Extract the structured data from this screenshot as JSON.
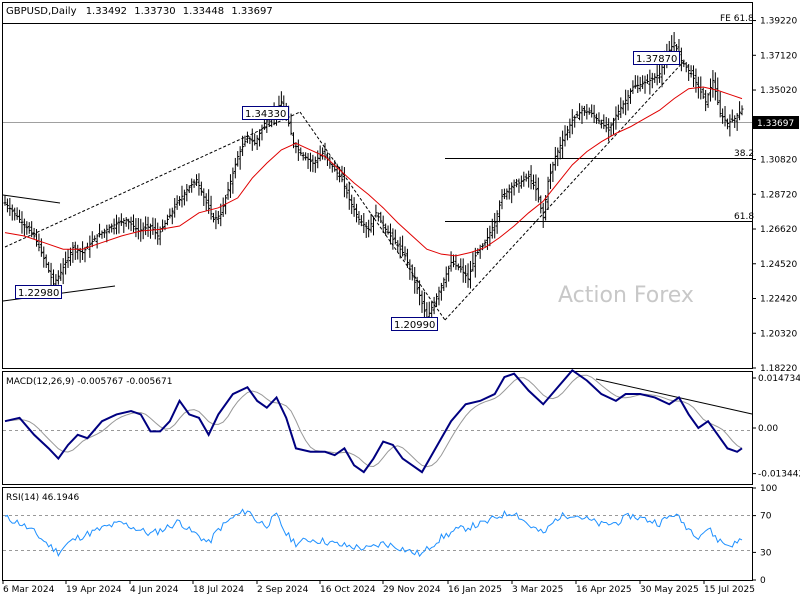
{
  "chart_data": [
    {
      "type": "candlestick",
      "panel": "price",
      "title": "GBPUSD,Daily",
      "ohlc": {
        "open": "1.33492",
        "high": "1.33730",
        "low": "1.33448",
        "close": "1.33697"
      },
      "ylim": [
        1.1822,
        1.4028
      ],
      "y_ticks": [
        "1.39220",
        "1.37120",
        "1.35020",
        "1.32920",
        "1.30820",
        "1.28720",
        "1.26620",
        "1.24520",
        "1.22420",
        "1.20320",
        "1.18220"
      ],
      "current_price": "1.33697",
      "x_ticks": [
        "6 Mar 2024",
        "19 Apr 2024",
        "4 Jun 2024",
        "18 Jul 2024",
        "2 Sep 2024",
        "16 Oct 2024",
        "29 Nov 2024",
        "16 Jan 2025",
        "3 Mar 2025",
        "16 Apr 2025",
        "30 May 2025",
        "15 Jul 2025"
      ],
      "ma_line_color": "#e00000",
      "bar_color": "#000000",
      "annotations": {
        "labels": [
          "1.34330",
          "1.22980",
          "1.20990",
          "1.37870"
        ],
        "fe": "FE 61.8",
        "fib382": "38.2",
        "fib618": "61.8",
        "watermark": "Action Forex"
      },
      "price_path": [
        [
          0,
          1.282
        ],
        [
          6,
          1.272
        ],
        [
          12,
          1.262
        ],
        [
          17,
          1.245
        ],
        [
          20,
          1.233
        ],
        [
          23,
          1.24
        ],
        [
          28,
          1.255
        ],
        [
          32,
          1.252
        ],
        [
          38,
          1.262
        ],
        [
          44,
          1.268
        ],
        [
          50,
          1.272
        ],
        [
          55,
          1.265
        ],
        [
          60,
          1.268
        ],
        [
          63,
          1.262
        ],
        [
          67,
          1.272
        ],
        [
          71,
          1.282
        ],
        [
          75,
          1.29
        ],
        [
          79,
          1.296
        ],
        [
          83,
          1.282
        ],
        [
          86,
          1.272
        ],
        [
          89,
          1.275
        ],
        [
          92,
          1.29
        ],
        [
          96,
          1.31
        ],
        [
          100,
          1.322
        ],
        [
          103,
          1.318
        ],
        [
          107,
          1.33
        ],
        [
          111,
          1.336
        ],
        [
          114,
          1.343
        ],
        [
          117,
          1.33
        ],
        [
          119,
          1.318
        ],
        [
          122,
          1.312
        ],
        [
          127,
          1.306
        ],
        [
          131,
          1.312
        ],
        [
          135,
          1.304
        ],
        [
          139,
          1.296
        ],
        [
          142,
          1.284
        ],
        [
          146,
          1.272
        ],
        [
          150,
          1.266
        ],
        [
          153,
          1.276
        ],
        [
          157,
          1.266
        ],
        [
          161,
          1.258
        ],
        [
          165,
          1.25
        ],
        [
          168,
          1.238
        ],
        [
          171,
          1.226
        ],
        [
          174,
          1.212
        ],
        [
          177,
          1.222
        ],
        [
          180,
          1.232
        ],
        [
          184,
          1.246
        ],
        [
          188,
          1.242
        ],
        [
          191,
          1.236
        ],
        [
          194,
          1.25
        ],
        [
          198,
          1.258
        ],
        [
          202,
          1.27
        ],
        [
          205,
          1.286
        ],
        [
          209,
          1.292
        ],
        [
          212,
          1.294
        ],
        [
          216,
          1.298
        ],
        [
          219,
          1.29
        ],
        [
          222,
          1.273
        ],
        [
          224,
          1.295
        ],
        [
          227,
          1.31
        ],
        [
          230,
          1.32
        ],
        [
          234,
          1.332
        ],
        [
          238,
          1.338
        ],
        [
          242,
          1.336
        ],
        [
          246,
          1.33
        ],
        [
          249,
          1.326
        ],
        [
          252,
          1.335
        ],
        [
          256,
          1.344
        ],
        [
          259,
          1.352
        ],
        [
          263,
          1.354
        ],
        [
          266,
          1.356
        ],
        [
          270,
          1.36
        ],
        [
          273,
          1.372
        ],
        [
          276,
          1.3787
        ],
        [
          279,
          1.368
        ],
        [
          283,
          1.36
        ],
        [
          286,
          1.352
        ],
        [
          289,
          1.343
        ],
        [
          292,
          1.356
        ],
        [
          295,
          1.336
        ],
        [
          298,
          1.33
        ],
        [
          301,
          1.333
        ],
        [
          304,
          1.3387
        ]
      ],
      "ma_path": [
        [
          0,
          1.264
        ],
        [
          8,
          1.262
        ],
        [
          16,
          1.258
        ],
        [
          24,
          1.254
        ],
        [
          32,
          1.254
        ],
        [
          40,
          1.258
        ],
        [
          48,
          1.262
        ],
        [
          56,
          1.265
        ],
        [
          64,
          1.266
        ],
        [
          72,
          1.268
        ],
        [
          80,
          1.276
        ],
        [
          88,
          1.279
        ],
        [
          96,
          1.285
        ],
        [
          102,
          1.297
        ],
        [
          108,
          1.306
        ],
        [
          114,
          1.314
        ],
        [
          120,
          1.318
        ],
        [
          126,
          1.314
        ],
        [
          132,
          1.31
        ],
        [
          138,
          1.302
        ],
        [
          144,
          1.294
        ],
        [
          150,
          1.287
        ],
        [
          156,
          1.279
        ],
        [
          162,
          1.27
        ],
        [
          168,
          1.262
        ],
        [
          174,
          1.254
        ],
        [
          180,
          1.251
        ],
        [
          186,
          1.25
        ],
        [
          192,
          1.252
        ],
        [
          198,
          1.255
        ],
        [
          204,
          1.261
        ],
        [
          210,
          1.268
        ],
        [
          216,
          1.276
        ],
        [
          222,
          1.283
        ],
        [
          228,
          1.294
        ],
        [
          234,
          1.305
        ],
        [
          240,
          1.313
        ],
        [
          246,
          1.319
        ],
        [
          252,
          1.324
        ],
        [
          258,
          1.328
        ],
        [
          264,
          1.333
        ],
        [
          270,
          1.338
        ],
        [
          276,
          1.345
        ],
        [
          282,
          1.351
        ],
        [
          288,
          1.352
        ],
        [
          294,
          1.35
        ],
        [
          300,
          1.347
        ],
        [
          304,
          1.345
        ]
      ]
    },
    {
      "type": "line",
      "panel": "macd",
      "title": "MACD(12,26,9) -0.005767 -0.005671",
      "ylim": [
        -0.0165,
        0.0165
      ],
      "y_ticks": [
        "0.014734",
        "0.00",
        "-0.013442"
      ],
      "macd_color": "#000080",
      "signal_color": "#999999",
      "macd_path": [
        [
          0,
          0.002
        ],
        [
          6,
          0.003
        ],
        [
          12,
          -0.002
        ],
        [
          18,
          -0.006
        ],
        [
          22,
          -0.009
        ],
        [
          26,
          -0.005
        ],
        [
          30,
          -0.002
        ],
        [
          34,
          -0.003
        ],
        [
          40,
          0.002
        ],
        [
          46,
          0.004
        ],
        [
          52,
          0.005
        ],
        [
          56,
          0.004
        ],
        [
          60,
          -0.001
        ],
        [
          64,
          -0.001
        ],
        [
          68,
          0.002
        ],
        [
          72,
          0.008
        ],
        [
          76,
          0.004
        ],
        [
          80,
          0.003
        ],
        [
          84,
          -0.002
        ],
        [
          88,
          0.004
        ],
        [
          94,
          0.01
        ],
        [
          100,
          0.012
        ],
        [
          104,
          0.008
        ],
        [
          108,
          0.006
        ],
        [
          112,
          0.009
        ],
        [
          116,
          0.003
        ],
        [
          120,
          -0.006
        ],
        [
          126,
          -0.007
        ],
        [
          132,
          -0.007
        ],
        [
          136,
          -0.008
        ],
        [
          140,
          -0.006
        ],
        [
          144,
          -0.011
        ],
        [
          148,
          -0.013
        ],
        [
          152,
          -0.009
        ],
        [
          156,
          -0.004
        ],
        [
          160,
          -0.005
        ],
        [
          164,
          -0.009
        ],
        [
          168,
          -0.011
        ],
        [
          172,
          -0.013
        ],
        [
          176,
          -0.008
        ],
        [
          180,
          -0.003
        ],
        [
          184,
          0.002
        ],
        [
          190,
          0.007
        ],
        [
          196,
          0.008
        ],
        [
          202,
          0.01
        ],
        [
          206,
          0.015
        ],
        [
          210,
          0.016
        ],
        [
          216,
          0.011
        ],
        [
          222,
          0.007
        ],
        [
          228,
          0.012
        ],
        [
          234,
          0.017
        ],
        [
          240,
          0.014
        ],
        [
          246,
          0.01
        ],
        [
          252,
          0.008
        ],
        [
          256,
          0.01
        ],
        [
          262,
          0.01
        ],
        [
          268,
          0.009
        ],
        [
          274,
          0.007
        ],
        [
          278,
          0.009
        ],
        [
          282,
          0.004
        ],
        [
          286,
          0.0
        ],
        [
          290,
          0.002
        ],
        [
          294,
          -0.002
        ],
        [
          298,
          -0.006
        ],
        [
          302,
          -0.007
        ],
        [
          304,
          -0.006
        ]
      ]
    },
    {
      "type": "line",
      "panel": "rsi",
      "title": "RSI(14) 46.1946",
      "ylim": [
        0,
        100
      ],
      "y_ticks": [
        "100",
        "70",
        "30",
        "0"
      ],
      "line_color": "#1e90ff",
      "rsi_path": [
        [
          0,
          68
        ],
        [
          6,
          62
        ],
        [
          12,
          52
        ],
        [
          18,
          38
        ],
        [
          22,
          30
        ],
        [
          26,
          40
        ],
        [
          30,
          46
        ],
        [
          36,
          52
        ],
        [
          42,
          58
        ],
        [
          48,
          62
        ],
        [
          54,
          56
        ],
        [
          60,
          50
        ],
        [
          66,
          56
        ],
        [
          72,
          64
        ],
        [
          76,
          54
        ],
        [
          80,
          48
        ],
        [
          84,
          40
        ],
        [
          88,
          55
        ],
        [
          94,
          68
        ],
        [
          100,
          76
        ],
        [
          104,
          64
        ],
        [
          108,
          60
        ],
        [
          112,
          70
        ],
        [
          116,
          50
        ],
        [
          120,
          40
        ],
        [
          126,
          44
        ],
        [
          132,
          42
        ],
        [
          138,
          38
        ],
        [
          144,
          36
        ],
        [
          150,
          34
        ],
        [
          156,
          40
        ],
        [
          162,
          36
        ],
        [
          168,
          30
        ],
        [
          172,
          28
        ],
        [
          176,
          38
        ],
        [
          180,
          46
        ],
        [
          186,
          54
        ],
        [
          192,
          58
        ],
        [
          198,
          62
        ],
        [
          204,
          70
        ],
        [
          210,
          74
        ],
        [
          216,
          60
        ],
        [
          222,
          50
        ],
        [
          228,
          68
        ],
        [
          234,
          72
        ],
        [
          240,
          66
        ],
        [
          246,
          60
        ],
        [
          252,
          62
        ],
        [
          258,
          70
        ],
        [
          264,
          66
        ],
        [
          270,
          62
        ],
        [
          276,
          72
        ],
        [
          282,
          56
        ],
        [
          286,
          48
        ],
        [
          290,
          56
        ],
        [
          294,
          44
        ],
        [
          298,
          38
        ],
        [
          302,
          40
        ],
        [
          304,
          46
        ]
      ]
    }
  ]
}
